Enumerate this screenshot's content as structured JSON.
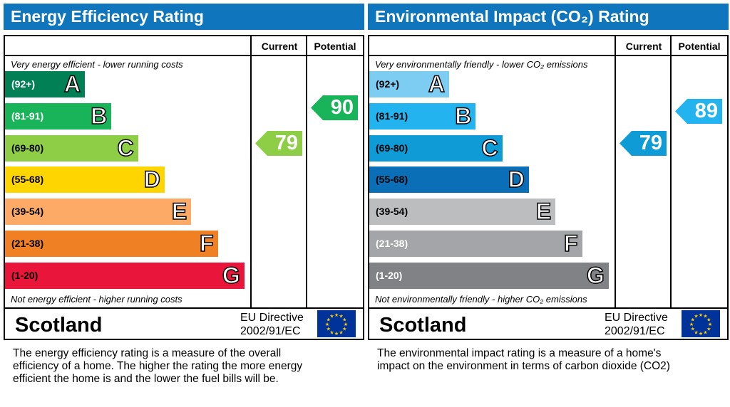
{
  "chart_data": [
    {
      "type": "bar",
      "title": "Energy Efficiency Rating",
      "columns": [
        "Current",
        "Potential"
      ],
      "top_caption": "Very energy efficient - lower running costs",
      "bottom_caption": "Not energy efficient - higher running costs",
      "bands": [
        {
          "letter": "A",
          "range": "(92+)",
          "color": "#008054",
          "text": "#fff"
        },
        {
          "letter": "B",
          "range": "(81-91)",
          "color": "#19b459",
          "text": "#fff"
        },
        {
          "letter": "C",
          "range": "(69-80)",
          "color": "#8dce46",
          "text": "#000"
        },
        {
          "letter": "D",
          "range": "(55-68)",
          "color": "#ffd500",
          "text": "#000"
        },
        {
          "letter": "E",
          "range": "(39-54)",
          "color": "#fcaa65",
          "text": "#000"
        },
        {
          "letter": "F",
          "range": "(21-38)",
          "color": "#ef8023",
          "text": "#000"
        },
        {
          "letter": "G",
          "range": "(1-20)",
          "color": "#e9153b",
          "text": "#000"
        }
      ],
      "current": {
        "value": 79,
        "label": "79",
        "color": "#8dce46"
      },
      "potential": {
        "value": 90,
        "label": "90",
        "color": "#19b459"
      },
      "region": "Scotland",
      "directive": [
        "EU Directive",
        "2002/91/EC"
      ],
      "description": [
        "The energy efficiency rating is a measure of the overall",
        "efficiency of a home.  The higher the rating the more energy",
        "efficient the home is and the lower the fuel bills will be."
      ]
    },
    {
      "type": "bar",
      "title": "Environmental Impact (CO₂) Rating",
      "columns": [
        "Current",
        "Potential"
      ],
      "top_caption": "Very environmentally friendly - lower CO₂ emissions",
      "bottom_caption": "Not environmentally friendly - higher CO₂ emissions",
      "bands": [
        {
          "letter": "A",
          "range": "(92+)",
          "color": "#7dcdf3",
          "text": "#000"
        },
        {
          "letter": "B",
          "range": "(81-91)",
          "color": "#23b3ef",
          "text": "#000"
        },
        {
          "letter": "C",
          "range": "(69-80)",
          "color": "#0f9bd6",
          "text": "#000"
        },
        {
          "letter": "D",
          "range": "(55-68)",
          "color": "#0a6fb7",
          "text": "#000"
        },
        {
          "letter": "E",
          "range": "(39-54)",
          "color": "#bbbdbf",
          "text": "#000"
        },
        {
          "letter": "F",
          "range": "(21-38)",
          "color": "#a3a5a8",
          "text": "#fff"
        },
        {
          "letter": "G",
          "range": "(1-20)",
          "color": "#808285",
          "text": "#fff"
        }
      ],
      "current": {
        "value": 79,
        "label": "79",
        "color": "#0f9bd6"
      },
      "potential": {
        "value": 89,
        "label": "89",
        "color": "#23b3ef"
      },
      "region": "Scotland",
      "directive": [
        "EU Directive",
        "2002/91/EC"
      ],
      "description": [
        "The environmental impact rating is a measure of a home's",
        "impact on the environment in terms of carbon dioxide (CO2)"
      ]
    }
  ]
}
